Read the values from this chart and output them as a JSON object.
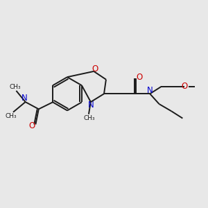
{
  "bg_color": "#e8e8e8",
  "bond_color": "#1a1a1a",
  "N_color": "#0000cc",
  "O_color": "#cc0000",
  "lw": 1.4,
  "figsize": [
    3.0,
    3.0
  ],
  "dpi": 100,
  "xlim": [
    0,
    10
  ],
  "ylim": [
    0,
    10
  ]
}
